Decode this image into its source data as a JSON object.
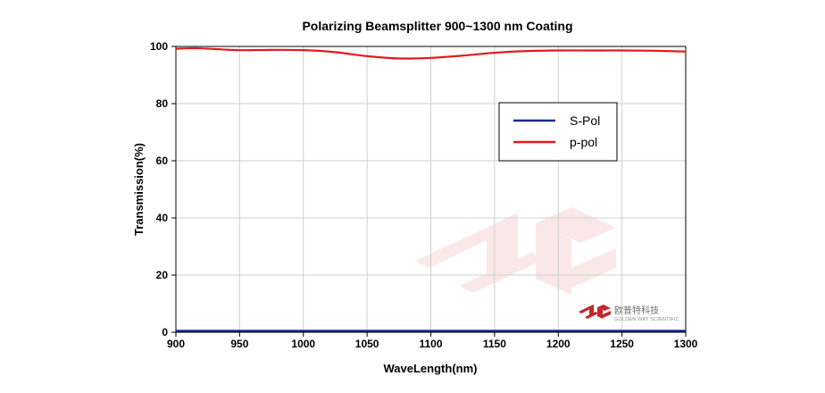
{
  "chart_data": {
    "type": "line",
    "title": "Polarizing Beamsplitter 900~1300 nm Coating",
    "xlabel": "WaveLength(nm)",
    "ylabel": "Transmission(%)",
    "xlim": [
      900,
      1300
    ],
    "ylim": [
      0,
      100
    ],
    "xticks": [
      900,
      950,
      1000,
      1050,
      1100,
      1150,
      1200,
      1250,
      1300
    ],
    "yticks": [
      0,
      20,
      40,
      60,
      80,
      100
    ],
    "grid": true,
    "legend_position": "upper-right",
    "series": [
      {
        "name": "S-Pol",
        "color": "#1a2a8c",
        "x": [
          900,
          950,
          1000,
          1050,
          1100,
          1150,
          1200,
          1250,
          1300
        ],
        "y": [
          0.5,
          0.5,
          0.5,
          0.5,
          0.5,
          0.5,
          0.5,
          0.5,
          0.5
        ]
      },
      {
        "name": "p-pol",
        "color": "#e41a1c",
        "x": [
          900,
          915,
          930,
          950,
          975,
          1000,
          1025,
          1050,
          1075,
          1100,
          1125,
          1150,
          1175,
          1200,
          1225,
          1250,
          1275,
          1300
        ],
        "y": [
          99.2,
          99.4,
          99.1,
          98.7,
          98.8,
          98.7,
          98.0,
          96.6,
          95.8,
          96.0,
          96.8,
          97.8,
          98.4,
          98.6,
          98.6,
          98.6,
          98.5,
          98.2
        ]
      }
    ]
  },
  "brand": {
    "logo_icon": "golden-way-logo-icon",
    "name_cn": "欧普特科技",
    "name_en": "GOLDEN WAY SCIENTIFIC"
  }
}
